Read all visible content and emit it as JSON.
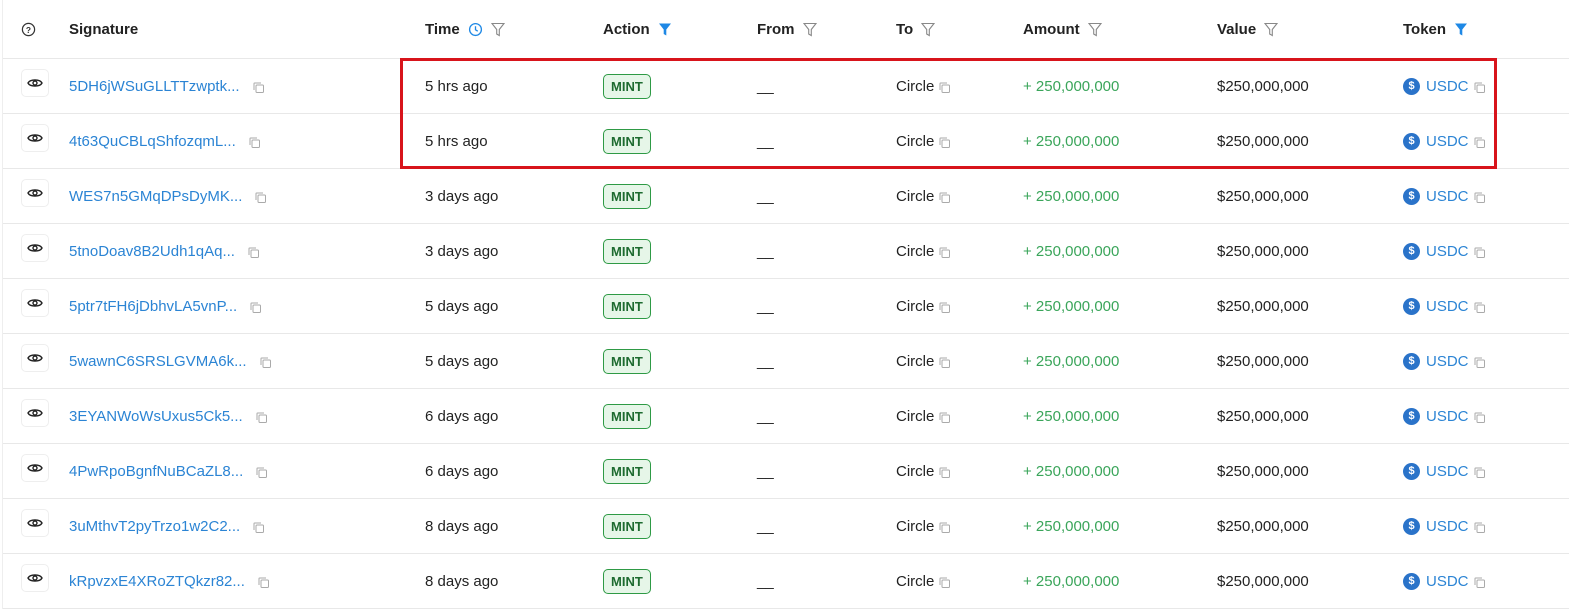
{
  "header": {
    "help_icon": "question-circle-icon",
    "columns": [
      "Signature",
      "Time",
      "Action",
      "From",
      "To",
      "Amount",
      "Value",
      "Token"
    ],
    "time_clock_icon": "clock-icon",
    "active_filters": [
      "Action",
      "Token"
    ],
    "filter_active_color": "#1e88e5",
    "filter_inactive_color": "#888888"
  },
  "highlight_color": "#d8141b",
  "rows": [
    {
      "signature": "5DH6jWSuGLLTTzwptk...",
      "time": "5 hrs ago",
      "action": "MINT",
      "from": "__",
      "to": "Circle",
      "amount": "+ 250,000,000",
      "value": "$250,000,000",
      "token": "USDC"
    },
    {
      "signature": "4t63QuCBLqShfozqmL...",
      "time": "5 hrs ago",
      "action": "MINT",
      "from": "__",
      "to": "Circle",
      "amount": "+ 250,000,000",
      "value": "$250,000,000",
      "token": "USDC"
    },
    {
      "signature": "WES7n5GMqDPsDyMK...",
      "time": "3 days ago",
      "action": "MINT",
      "from": "__",
      "to": "Circle",
      "amount": "+ 250,000,000",
      "value": "$250,000,000",
      "token": "USDC"
    },
    {
      "signature": "5tnoDoav8B2Udh1qAq...",
      "time": "3 days ago",
      "action": "MINT",
      "from": "__",
      "to": "Circle",
      "amount": "+ 250,000,000",
      "value": "$250,000,000",
      "token": "USDC"
    },
    {
      "signature": "5ptr7tFH6jDbhvLA5vnP...",
      "time": "5 days ago",
      "action": "MINT",
      "from": "__",
      "to": "Circle",
      "amount": "+ 250,000,000",
      "value": "$250,000,000",
      "token": "USDC"
    },
    {
      "signature": "5wawnC6SRSLGVMA6k...",
      "time": "5 days ago",
      "action": "MINT",
      "from": "__",
      "to": "Circle",
      "amount": "+ 250,000,000",
      "value": "$250,000,000",
      "token": "USDC"
    },
    {
      "signature": "3EYANWoWsUxus5Ck5...",
      "time": "6 days ago",
      "action": "MINT",
      "from": "__",
      "to": "Circle",
      "amount": "+ 250,000,000",
      "value": "$250,000,000",
      "token": "USDC"
    },
    {
      "signature": "4PwRpoBgnfNuBCaZL8...",
      "time": "6 days ago",
      "action": "MINT",
      "from": "__",
      "to": "Circle",
      "amount": "+ 250,000,000",
      "value": "$250,000,000",
      "token": "USDC"
    },
    {
      "signature": "3uMthvT2pyTrzo1w2C2...",
      "time": "8 days ago",
      "action": "MINT",
      "from": "__",
      "to": "Circle",
      "amount": "+ 250,000,000",
      "value": "$250,000,000",
      "token": "USDC"
    },
    {
      "signature": "kRpvzxE4XRoZTQkzr82...",
      "time": "8 days ago",
      "action": "MINT",
      "from": "__",
      "to": "Circle",
      "amount": "+ 250,000,000",
      "value": "$250,000,000",
      "token": "USDC"
    }
  ]
}
